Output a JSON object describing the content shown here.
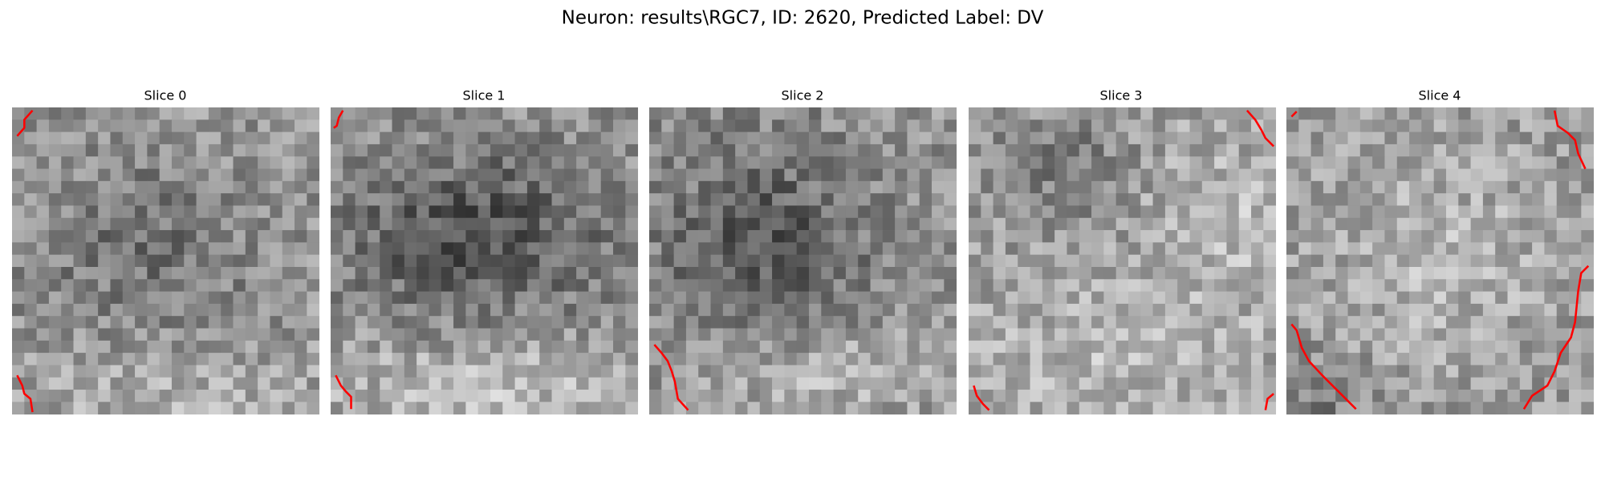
{
  "figure": {
    "title": "Neuron: results\\RGC7, ID: 2620, Predicted Label: DV",
    "panels": [
      {
        "title": "Slice 0"
      },
      {
        "title": "Slice 1"
      },
      {
        "title": "Slice 2"
      },
      {
        "title": "Slice 3"
      },
      {
        "title": "Slice 4"
      }
    ]
  }
}
